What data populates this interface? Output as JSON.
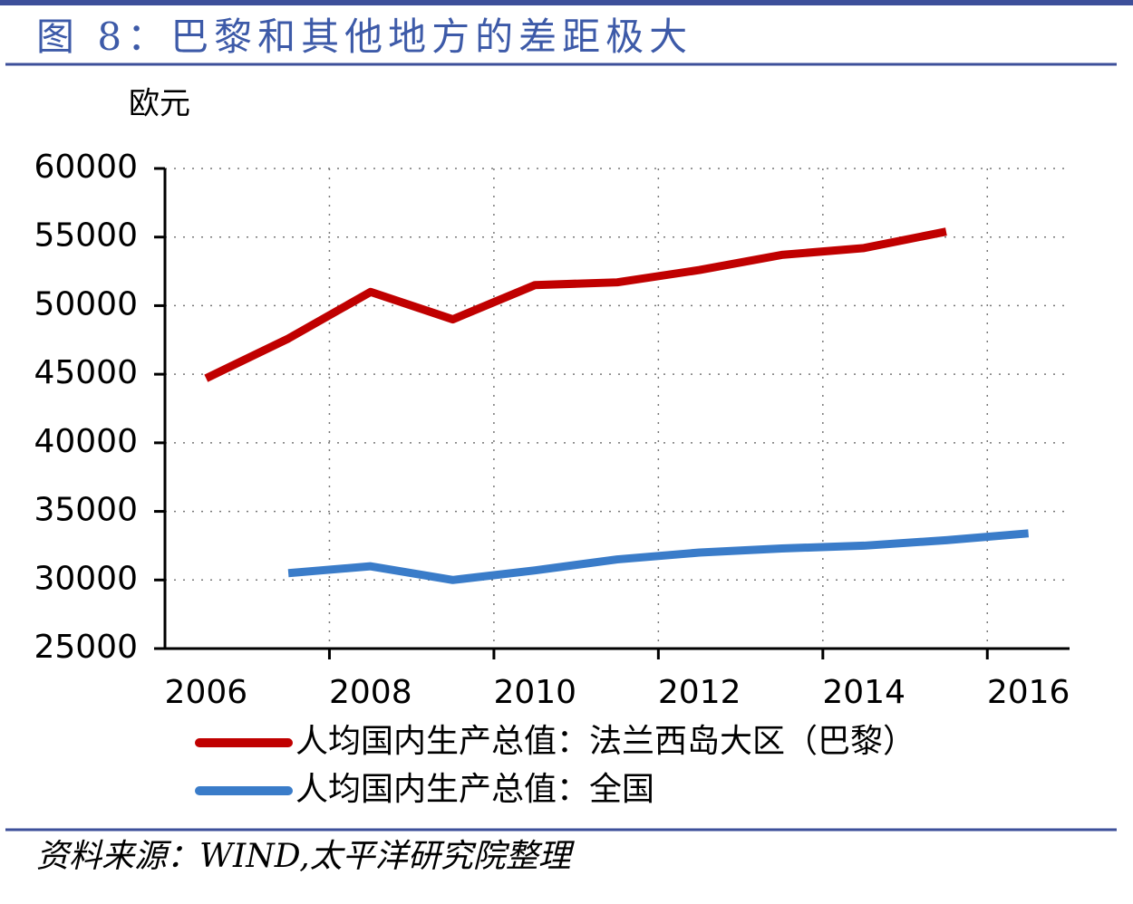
{
  "chart_data": {
    "type": "line",
    "title": "图 8：巴黎和其他地方的差距极大",
    "y_label": "欧元",
    "source": "资料来源：WIND,太平洋研究院整理",
    "categories": [
      "2006",
      null,
      "2008",
      null,
      "2010",
      null,
      "2012",
      null,
      "2014",
      null,
      "2016"
    ],
    "series": [
      {
        "name": "人均国内生产总值：法兰西岛大区（巴黎）",
        "color": "#c00000",
        "values": [
          44700,
          47600,
          51000,
          49000,
          51500,
          51700,
          52600,
          53700,
          54200,
          55400,
          null
        ]
      },
      {
        "name": "人均国内生产总值：全国",
        "color": "#3a7cc9",
        "values": [
          null,
          30500,
          31000,
          30000,
          30700,
          31500,
          32000,
          32300,
          32500,
          32900,
          33400
        ]
      }
    ],
    "ylim": [
      25000,
      60000
    ],
    "yticks": [
      25000,
      30000,
      35000,
      40000,
      45000,
      50000,
      55000,
      60000
    ],
    "grid": true
  }
}
